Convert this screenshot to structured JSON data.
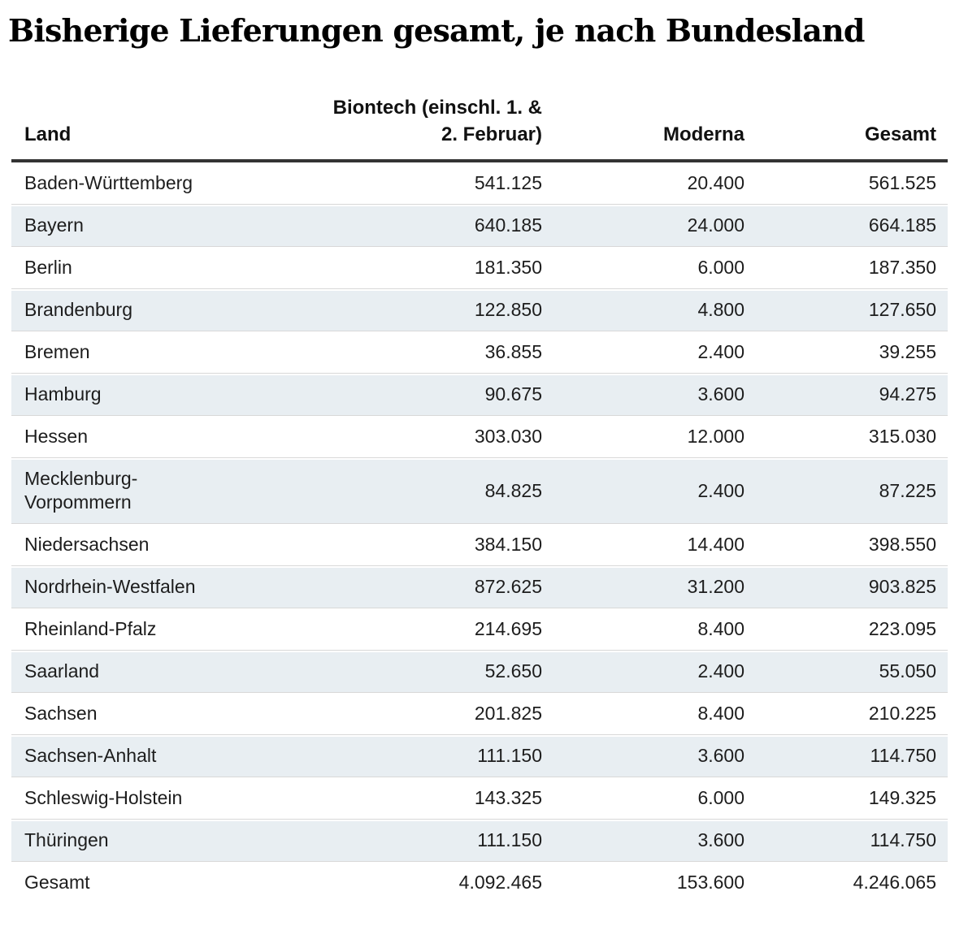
{
  "page": {
    "title": "Bisherige Lieferungen gesamt, je nach Bundesland"
  },
  "table": {
    "columns": [
      {
        "label": "Land"
      },
      {
        "label": "Biontech (einschl. 1. & 2. Februar)",
        "lines": [
          "Biontech (einschl. 1. &",
          "2. Februar)"
        ]
      },
      {
        "label": "Moderna"
      },
      {
        "label": "Gesamt"
      }
    ],
    "rows": [
      {
        "land": "Baden-Württemberg",
        "biontech": "541.125",
        "moderna": "20.400",
        "gesamt": "561.525"
      },
      {
        "land": "Bayern",
        "biontech": "640.185",
        "moderna": "24.000",
        "gesamt": "664.185"
      },
      {
        "land": "Berlin",
        "biontech": "181.350",
        "moderna": "6.000",
        "gesamt": "187.350"
      },
      {
        "land": "Brandenburg",
        "biontech": "122.850",
        "moderna": "4.800",
        "gesamt": "127.650"
      },
      {
        "land": "Bremen",
        "biontech": "36.855",
        "moderna": "2.400",
        "gesamt": "39.255"
      },
      {
        "land": "Hamburg",
        "biontech": "90.675",
        "moderna": "3.600",
        "gesamt": "94.275"
      },
      {
        "land": "Hessen",
        "biontech": "303.030",
        "moderna": "12.000",
        "gesamt": "315.030"
      },
      {
        "land": "Mecklenburg-Vorpommern",
        "biontech": "84.825",
        "moderna": "2.400",
        "gesamt": "87.225"
      },
      {
        "land": "Niedersachsen",
        "biontech": "384.150",
        "moderna": "14.400",
        "gesamt": "398.550"
      },
      {
        "land": "Nordrhein-Westfalen",
        "biontech": "872.625",
        "moderna": "31.200",
        "gesamt": "903.825"
      },
      {
        "land": "Rheinland-Pfalz",
        "biontech": "214.695",
        "moderna": "8.400",
        "gesamt": "223.095"
      },
      {
        "land": "Saarland",
        "biontech": "52.650",
        "moderna": "2.400",
        "gesamt": "55.050"
      },
      {
        "land": "Sachsen",
        "biontech": "201.825",
        "moderna": "8.400",
        "gesamt": "210.225"
      },
      {
        "land": "Sachsen-Anhalt",
        "biontech": "111.150",
        "moderna": "3.600",
        "gesamt": "114.750"
      },
      {
        "land": "Schleswig-Holstein",
        "biontech": "143.325",
        "moderna": "6.000",
        "gesamt": "149.325"
      },
      {
        "land": "Thüringen",
        "biontech": "111.150",
        "moderna": "3.600",
        "gesamt": "114.750"
      },
      {
        "land": "Gesamt",
        "biontech": "4.092.465",
        "moderna": "153.600",
        "gesamt": "4.246.065"
      }
    ]
  },
  "chart_data": {
    "type": "table",
    "title": "Bisherige Lieferungen gesamt, je nach Bundesland",
    "columns": [
      "Land",
      "Biontech (einschl. 1. & 2. Februar)",
      "Moderna",
      "Gesamt"
    ],
    "rows": [
      [
        "Baden-Württemberg",
        541125,
        20400,
        561525
      ],
      [
        "Bayern",
        640185,
        24000,
        664185
      ],
      [
        "Berlin",
        181350,
        6000,
        187350
      ],
      [
        "Brandenburg",
        122850,
        4800,
        127650
      ],
      [
        "Bremen",
        36855,
        2400,
        39255
      ],
      [
        "Hamburg",
        90675,
        3600,
        94275
      ],
      [
        "Hessen",
        303030,
        12000,
        315030
      ],
      [
        "Mecklenburg-Vorpommern",
        84825,
        2400,
        87225
      ],
      [
        "Niedersachsen",
        384150,
        14400,
        398550
      ],
      [
        "Nordrhein-Westfalen",
        872625,
        31200,
        903825
      ],
      [
        "Rheinland-Pfalz",
        214695,
        8400,
        223095
      ],
      [
        "Saarland",
        52650,
        2400,
        55050
      ],
      [
        "Sachsen",
        201825,
        8400,
        210225
      ],
      [
        "Sachsen-Anhalt",
        111150,
        3600,
        114750
      ],
      [
        "Schleswig-Holstein",
        143325,
        6000,
        149325
      ],
      [
        "Thüringen",
        111150,
        3600,
        114750
      ]
    ],
    "total_row": [
      "Gesamt",
      4092465,
      153600,
      4246065
    ],
    "number_format": "de-DE (dot thousands separator)"
  },
  "colors": {
    "stripe": "#e8eef2",
    "row_separator": "#d8d8d8",
    "header_rule": "#333333",
    "text": "#1d1d1d",
    "title": "#000000"
  }
}
